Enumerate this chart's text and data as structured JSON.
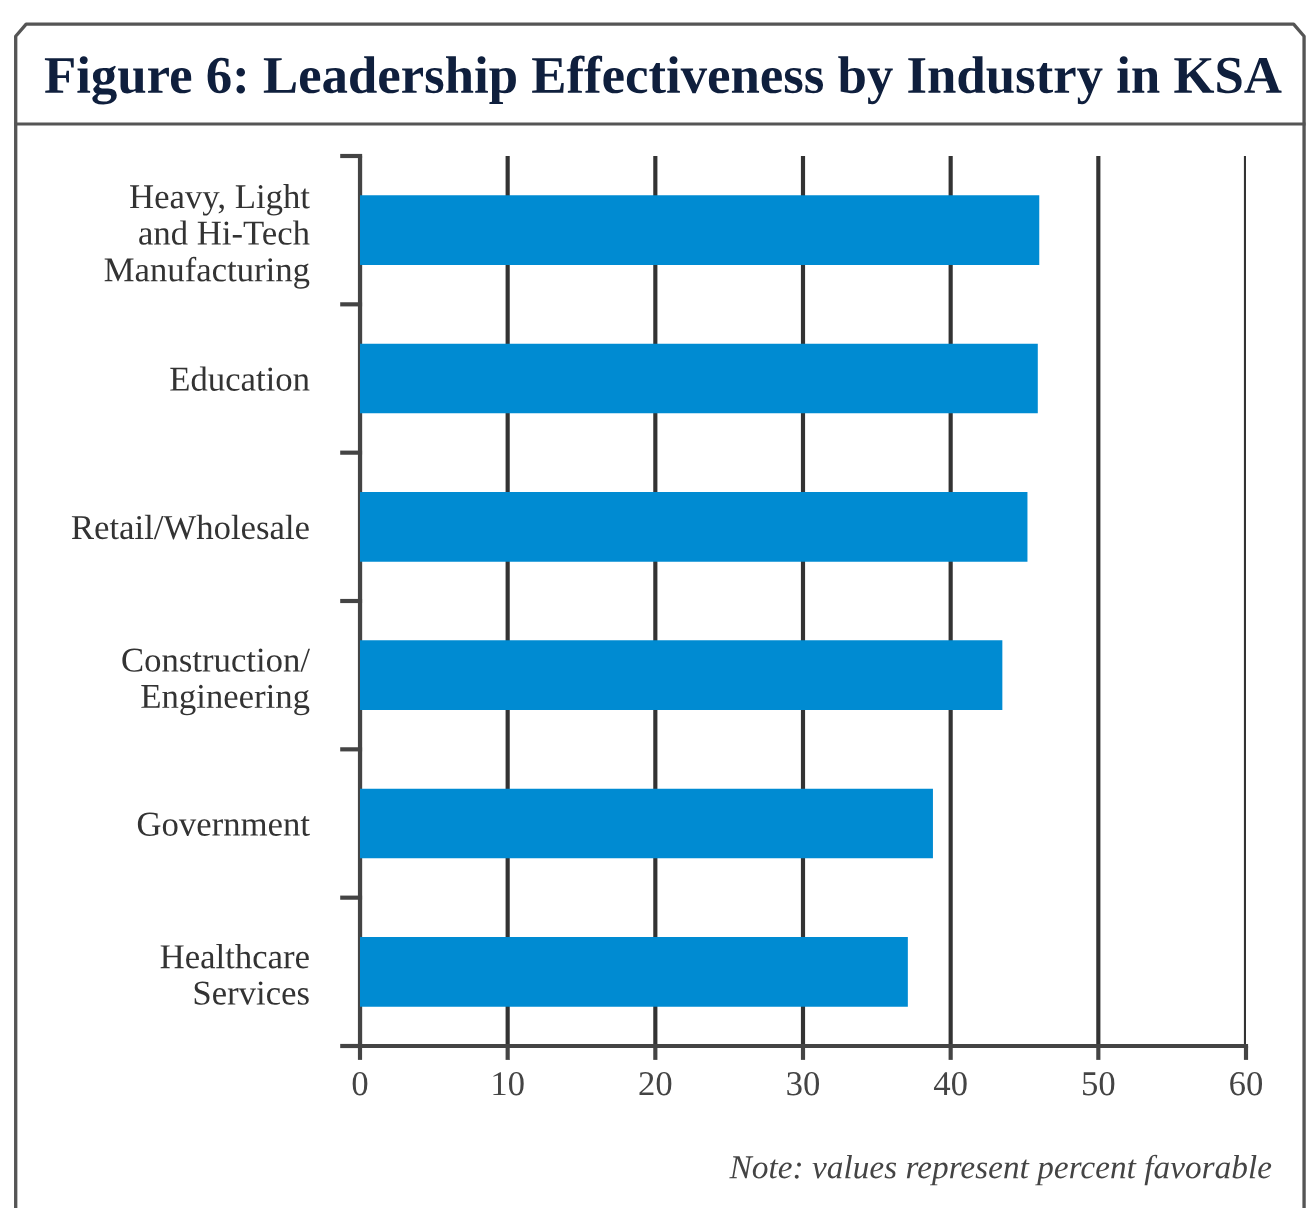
{
  "chart_data": {
    "type": "bar",
    "orientation": "horizontal",
    "title": "Figure 6: Leadership Effectiveness by Industry in KSA",
    "categories": [
      "Heavy, Light\nand Hi-Tech\nManufacturing",
      "Education",
      "Retail/Wholesale",
      "Construction/\nEngineering",
      "Government",
      "Healthcare\nServices"
    ],
    "values": [
      46.0,
      45.9,
      45.2,
      43.5,
      38.8,
      37.1
    ],
    "color": "#008bd2",
    "xlim": [
      0,
      60
    ],
    "xticks": [
      0,
      10,
      20,
      30,
      40,
      50,
      60
    ],
    "grid": "x",
    "legend": false,
    "annotations": [
      "Note: values represent percent favorable"
    ]
  }
}
